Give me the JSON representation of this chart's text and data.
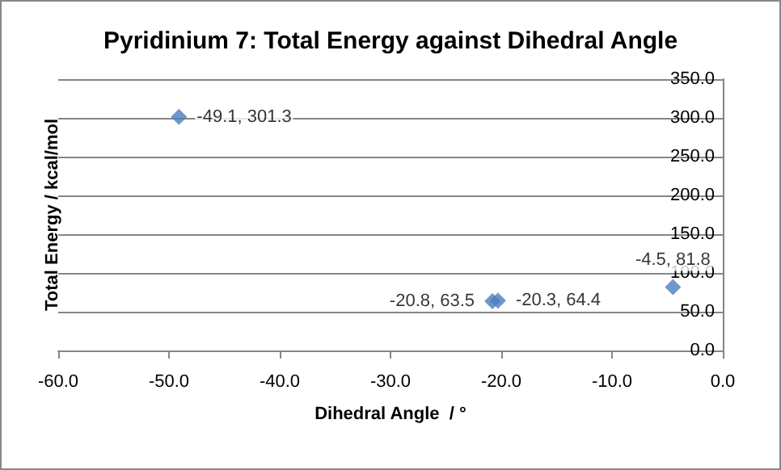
{
  "chart_data": {
    "type": "scatter",
    "title": "Pyridinium 7: Total Energy against Dihedral Angle",
    "xlabel": "Dihedral Angle  / °",
    "ylabel": "Total Energy / kcal/mol",
    "x": [
      -49.1,
      -4.5,
      -20.8,
      -20.3
    ],
    "series": [
      {
        "color": "#4a7ebb",
        "values": [
          301.3,
          81.8,
          63.5,
          64.4
        ],
        "value_labels": [
          "-49.1, 301.3",
          "-4.5, 81.8",
          "-20.8, 63.5",
          "-20.3, 64.4"
        ]
      }
    ],
    "marker": "diamond",
    "grid": "y",
    "xlim": [
      -60,
      0
    ],
    "xticks": [
      {
        "value": -60,
        "label": "-60.0"
      },
      {
        "value": -50,
        "label": "-50.0"
      },
      {
        "value": -40,
        "label": "-40.0"
      },
      {
        "value": -30,
        "label": "-30.0"
      },
      {
        "value": -20,
        "label": "-20.0"
      },
      {
        "value": -10,
        "label": "-10.0"
      },
      {
        "value": 0,
        "label": "0.0"
      }
    ],
    "ylim": [
      0,
      350
    ],
    "yticks": [
      {
        "value": 0,
        "label": "0.0"
      },
      {
        "value": 50,
        "label": "50.0"
      },
      {
        "value": 100,
        "label": "100.0"
      },
      {
        "value": 150,
        "label": "150.0"
      },
      {
        "value": 200,
        "label": "200.0"
      },
      {
        "value": 250,
        "label": "250.0"
      },
      {
        "value": 300,
        "label": "300.0"
      },
      {
        "value": 350,
        "label": "350.0"
      }
    ]
  }
}
